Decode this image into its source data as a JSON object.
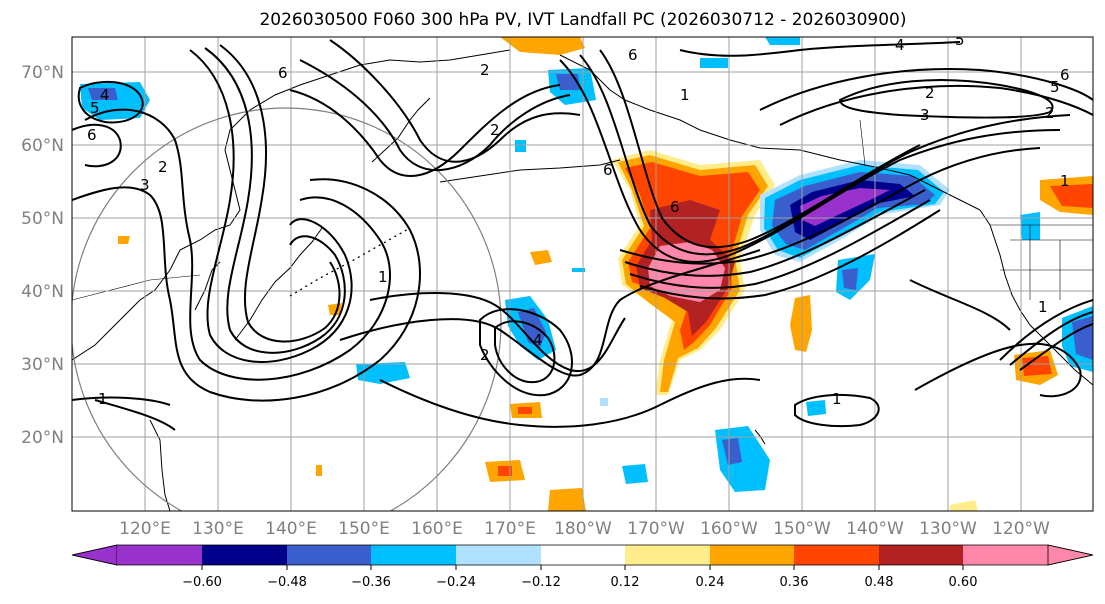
{
  "title": "2026030500 F060 300 hPa PV, IVT Landfall PC (2026030712 - 2026030900)",
  "lat_labels": [
    "70°N",
    "60°N",
    "50°N",
    "40°N",
    "30°N",
    "20°N"
  ],
  "lon_labels": [
    "120°E",
    "130°E",
    "140°E",
    "150°E",
    "160°E",
    "170°E",
    "180°W",
    "170°W",
    "160°W",
    "150°W",
    "140°W",
    "130°W",
    "120°W"
  ],
  "colorbar": {
    "colors": [
      "#9932cc",
      "#00008b",
      "#3a5fcd",
      "#00bfff",
      "#b0e2ff",
      "#ffffff",
      "#ffec8b",
      "#ffa500",
      "#ff4500",
      "#b22222",
      "#ff88aa"
    ],
    "tick_labels": [
      "−0.60",
      "−0.48",
      "−0.36",
      "−0.24",
      "−0.12",
      "0.12",
      "0.24",
      "0.36",
      "0.48",
      "0.60"
    ]
  },
  "contour_labels": [
    "4",
    "5",
    "6",
    "3",
    "2",
    "2",
    "2",
    "6",
    "4",
    "5",
    "1",
    "6",
    "3",
    "2",
    "2",
    "5",
    "6",
    "6",
    "6",
    "1",
    "2",
    "4",
    "1",
    "1",
    "1",
    "1"
  ]
}
